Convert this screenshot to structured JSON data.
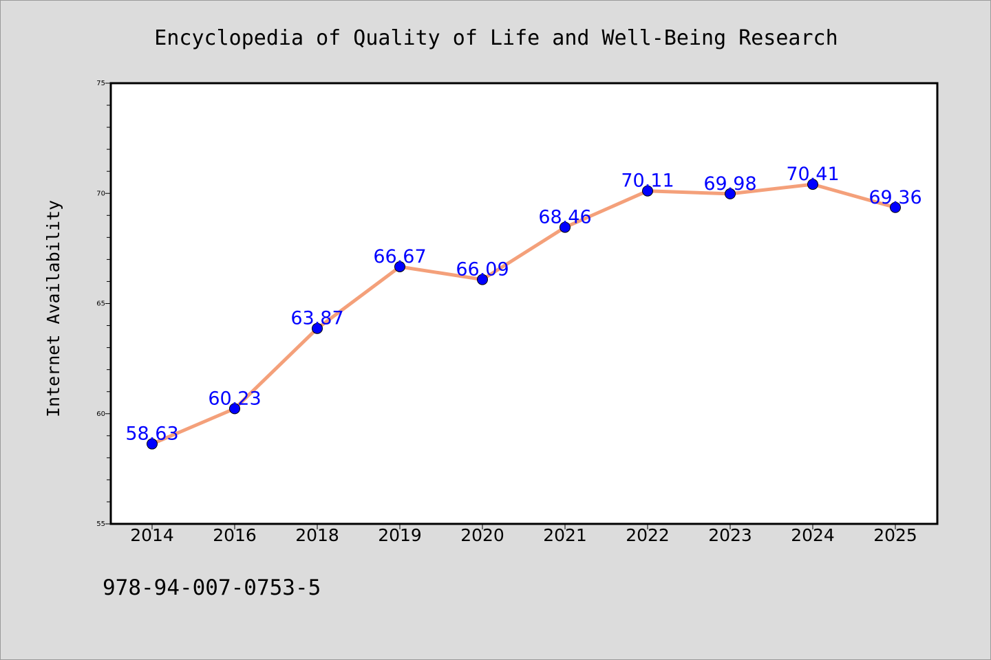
{
  "chart_data": {
    "type": "line",
    "title": "Encyclopedia of Quality of Life and Well-Being Research",
    "xlabel": "",
    "ylabel": "Internet Availability",
    "categories": [
      "2014",
      "2016",
      "2018",
      "2019",
      "2020",
      "2021",
      "2022",
      "2023",
      "2024",
      "2025"
    ],
    "series": [
      {
        "values": [
          58.63,
          60.23,
          63.87,
          66.67,
          66.09,
          68.46,
          70.11,
          69.98,
          70.41,
          69.36
        ],
        "labels": [
          "58.63",
          "60.23",
          "63.87",
          "66.67",
          "66.09",
          "68.46",
          "70.11",
          "69.98",
          "70.41",
          "69.36"
        ],
        "line_color": "#f4a07a",
        "marker_color": "#0000ff",
        "label_color": "#0000ff"
      }
    ],
    "ylim": [
      55,
      75
    ],
    "yticks": [
      "55",
      "60",
      "65",
      "70",
      "75"
    ],
    "y_major_step": 5,
    "y_minor_step": 1,
    "grid": false,
    "legend": "none",
    "plot_background": "#ffffff",
    "figure_background": "#dcdcdc"
  },
  "footer": {
    "isbn": "978-94-007-0753-5"
  }
}
